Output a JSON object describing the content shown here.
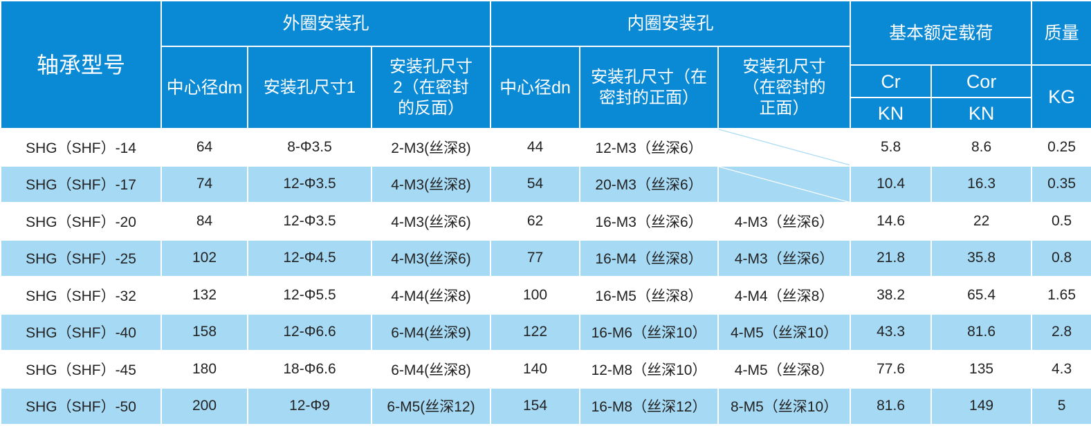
{
  "header": {
    "model": "轴承型号",
    "outer_group": "外圈安装孔",
    "inner_group": "内圈安装孔",
    "load_group": "基本额定载荷",
    "mass": "质量",
    "outer_dm": "中心径dm",
    "outer_size1": "安装孔尺寸1",
    "outer_size2": "安装孔尺寸2（在密封的反面）",
    "inner_dn": "中心径dn",
    "inner_size_front": "安装孔尺寸（在密封的正面）",
    "inner_size_front2": "安装孔尺寸（在密封的正面）",
    "cr": "Cr",
    "cor": "Cor",
    "cr_unit": "KN",
    "cor_unit": "KN",
    "mass_unit": "KG"
  },
  "colors": {
    "header_bg": "#0a8ad4",
    "alt_row_bg": "#a6d9f4"
  },
  "rows": [
    [
      "SHG（SHF）-14",
      "64",
      "8-Φ3.5",
      "2-M3(丝深8)",
      "44",
      "12-M3（丝深6）",
      "",
      "5.8",
      "8.6",
      "0.25"
    ],
    [
      "SHG（SHF）-17",
      "74",
      "12-Φ3.5",
      "4-M3(丝深8)",
      "54",
      "20-M3（丝深6）",
      "",
      "10.4",
      "16.3",
      "0.35"
    ],
    [
      "SHG（SHF）-20",
      "84",
      "12-Φ3.5",
      "4-M3(丝深6)",
      "62",
      "16-M3（丝深6）",
      "4-M3（丝深6）",
      "14.6",
      "22",
      "0.5"
    ],
    [
      "SHG（SHF）-25",
      "102",
      "12-Φ4.5",
      "4-M3(丝深6)",
      "77",
      "16-M4（丝深8）",
      "4-M3（丝深6）",
      "21.8",
      "35.8",
      "0.8"
    ],
    [
      "SHG（SHF）-32",
      "132",
      "12-Φ5.5",
      "4-M4(丝深8)",
      "100",
      "16-M5（丝深8）",
      "4-M4（丝深8）",
      "38.2",
      "65.4",
      "1.65"
    ],
    [
      "SHG（SHF）-40",
      "158",
      "12-Φ6.6",
      "6-M4(丝深9)",
      "122",
      "16-M6（丝深10）",
      "4-M5（丝深10）",
      "43.3",
      "81.6",
      "2.8"
    ],
    [
      "SHG（SHF）-45",
      "180",
      "18-Φ6.6",
      "6-M4(丝深8)",
      "140",
      "12-M8（丝深10）",
      "4-M5（丝深8）",
      "77.6",
      "135",
      "4.3"
    ],
    [
      "SHG（SHF）-50",
      "200",
      "12-Φ9",
      "6-M5(丝深12)",
      "154",
      "16-M8（丝深12）",
      "8-M5（丝深10）",
      "81.6",
      "149",
      "5"
    ]
  ]
}
